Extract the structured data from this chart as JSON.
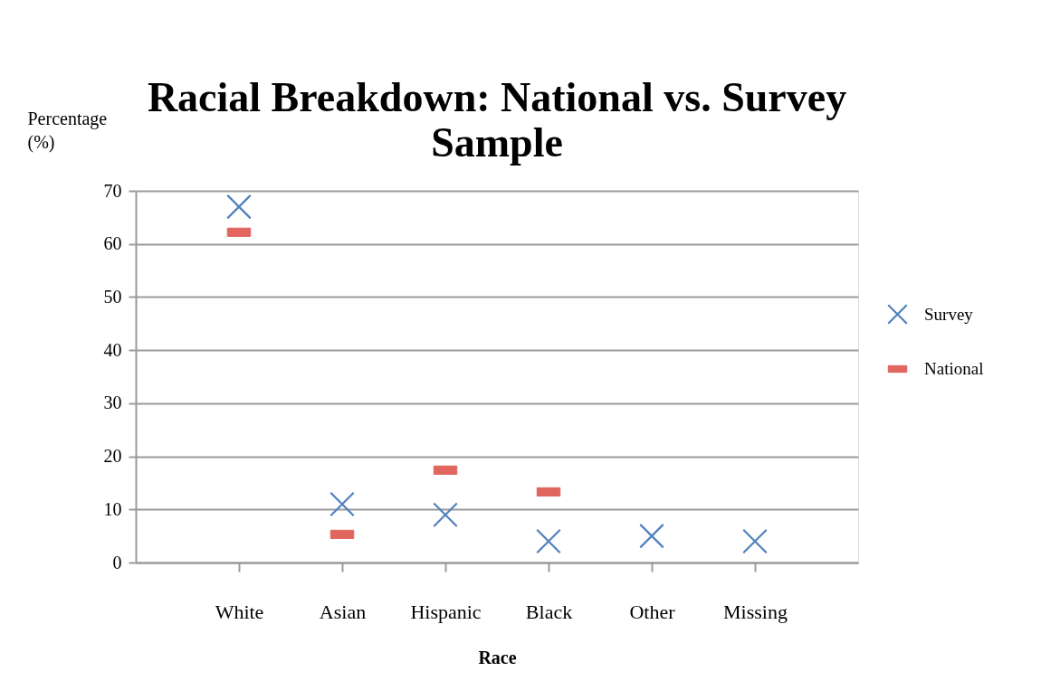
{
  "chart_data": {
    "type": "scatter",
    "title": "Racial Breakdown: National vs. Survey Sample",
    "xlabel": "Race",
    "ylabel": "Percentage (%)",
    "categories": [
      "White",
      "Asian",
      "Hispanic",
      "Black",
      "Other",
      "Missing"
    ],
    "series": [
      {
        "name": "Survey",
        "color": "#4f81bd",
        "marker": "cross",
        "values": [
          67,
          11,
          9,
          4,
          5,
          4
        ]
      },
      {
        "name": "National",
        "color": "#e0665f",
        "values": [
          62.2,
          5.3,
          17.4,
          13.3,
          null,
          null
        ]
      }
    ],
    "ylim": [
      0,
      70
    ],
    "yticks": [
      0,
      10,
      20,
      30,
      40,
      50,
      60,
      70
    ],
    "grid": "y",
    "legend": "right"
  }
}
